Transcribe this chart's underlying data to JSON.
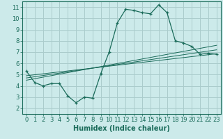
{
  "xlabel": "Humidex (Indice chaleur)",
  "background_color": "#cceaea",
  "grid_color": "#aacccc",
  "line_color": "#1a6b5a",
  "xlim": [
    -0.5,
    23.5
  ],
  "ylim": [
    1.5,
    11.5
  ],
  "xticks": [
    0,
    1,
    2,
    3,
    4,
    5,
    6,
    7,
    8,
    9,
    10,
    11,
    12,
    13,
    14,
    15,
    16,
    17,
    18,
    19,
    20,
    21,
    22,
    23
  ],
  "yticks": [
    2,
    3,
    4,
    5,
    6,
    7,
    8,
    9,
    10,
    11
  ],
  "main_x": [
    0,
    1,
    2,
    3,
    4,
    5,
    6,
    7,
    8,
    9,
    10,
    11,
    12,
    13,
    14,
    15,
    16,
    17,
    18,
    19,
    20,
    21,
    22,
    23
  ],
  "main_y": [
    5.3,
    4.3,
    4.0,
    4.2,
    4.2,
    3.1,
    2.5,
    3.0,
    2.9,
    5.1,
    7.0,
    9.6,
    10.8,
    10.7,
    10.5,
    10.4,
    11.2,
    10.5,
    8.0,
    7.8,
    7.5,
    6.8,
    6.9,
    6.8
  ],
  "line1_x": [
    0,
    23
  ],
  "line1_y": [
    4.9,
    6.85
  ],
  "line2_x": [
    0,
    23
  ],
  "line2_y": [
    4.7,
    7.2
  ],
  "line3_x": [
    0,
    23
  ],
  "line3_y": [
    4.5,
    7.6
  ],
  "font_size": 6,
  "xlabel_fontsize": 7
}
